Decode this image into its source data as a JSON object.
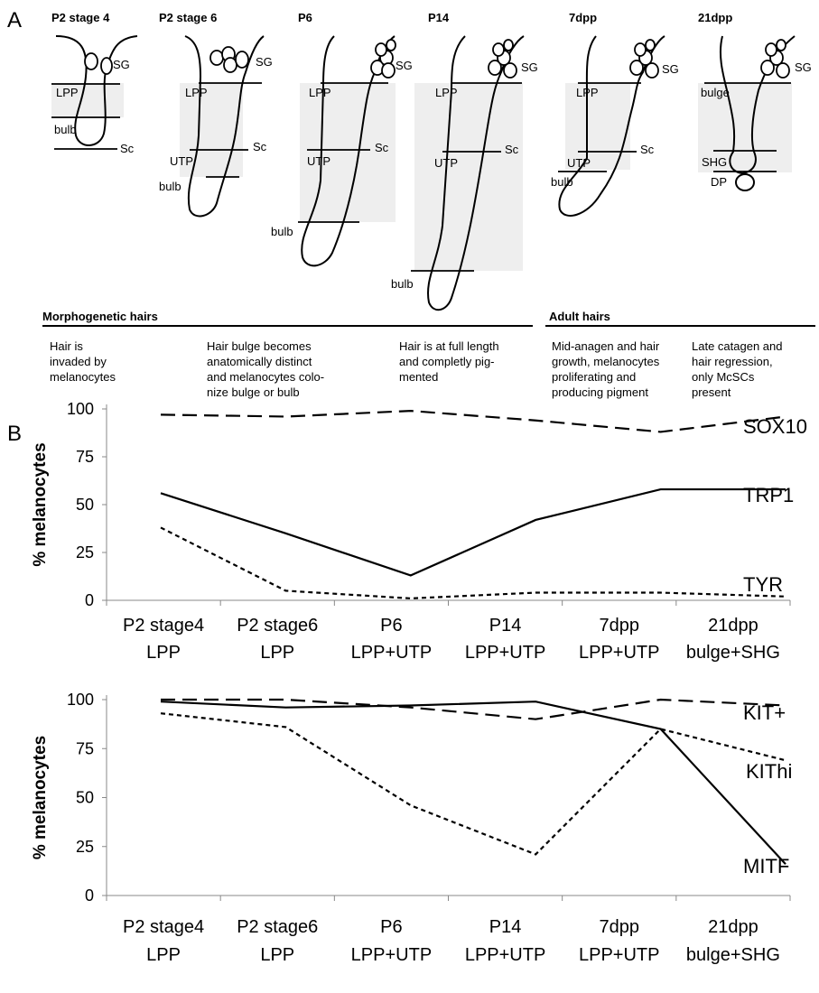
{
  "diagram": {
    "panel_label": "A",
    "hairs": [
      {
        "title": "P2 stage 4",
        "labels": [
          "SG",
          "LPP",
          "bulb",
          "Sc"
        ]
      },
      {
        "title": "P2 stage 6",
        "labels": [
          "SG",
          "LPP",
          "Sc",
          "UTP",
          "bulb"
        ]
      },
      {
        "title": "P6",
        "labels": [
          "SG",
          "LPP",
          "Sc",
          "UTP",
          "bulb"
        ]
      },
      {
        "title": "P14",
        "labels": [
          "SG",
          "LPP",
          "Sc",
          "UTP",
          "bulb"
        ]
      },
      {
        "title": "7dpp",
        "labels": [
          "SG",
          "LPP",
          "Sc",
          "UTP",
          "bulb"
        ]
      },
      {
        "title": "21dpp",
        "labels": [
          "SG",
          "bulge",
          "SHG",
          "DP"
        ]
      }
    ],
    "sections": [
      "Morphogenetic hairs",
      "Adult hairs"
    ],
    "descriptions": [
      [
        "Hair is",
        "invaded by",
        "melanocytes"
      ],
      [
        "Hair bulge becomes",
        "anatomically distinct",
        "and melanocytes colo-",
        "nize bulge or bulb"
      ],
      [
        "Hair is at full length",
        "and completly pig-",
        "mented"
      ],
      [
        "Mid-anagen and hair",
        "growth, melanocytes",
        "proliferating and",
        "producing pigment"
      ],
      [
        "Late catagen and",
        "hair regression,",
        "only McSCs",
        "present"
      ]
    ]
  },
  "panel_b_label": "B",
  "chart_data": [
    {
      "type": "line",
      "ylabel": "% melanocytes",
      "categories": [
        [
          "P2 stage4",
          "LPP"
        ],
        [
          "P2 stage6",
          "LPP"
        ],
        [
          "P6",
          "LPP+UTP"
        ],
        [
          "P14",
          "LPP+UTP"
        ],
        [
          "7dpp",
          "LPP+UTP"
        ],
        [
          "21dpp",
          "bulge+SHG"
        ]
      ],
      "ylim": [
        0,
        100
      ],
      "yticks": [
        0,
        25,
        50,
        75,
        100
      ],
      "series": [
        {
          "name": "SOX10",
          "color": "#000000",
          "line_style": "long-dash",
          "values": [
            97,
            96,
            99,
            94,
            88,
            96
          ]
        },
        {
          "name": "TRP1",
          "color": "#000000",
          "line_style": "solid",
          "values": [
            56,
            35,
            13,
            42,
            58,
            58
          ]
        },
        {
          "name": "TYR",
          "color": "#000000",
          "line_style": "short-dash",
          "values": [
            38,
            5,
            1,
            4,
            4,
            2
          ]
        }
      ]
    },
    {
      "type": "line",
      "ylabel": "% melanocytes",
      "categories": [
        [
          "P2 stage4",
          "LPP"
        ],
        [
          "P2 stage6",
          "LPP"
        ],
        [
          "P6",
          "LPP+UTP"
        ],
        [
          "P14",
          "LPP+UTP"
        ],
        [
          "7dpp",
          "LPP+UTP"
        ],
        [
          "21dpp",
          "bulge+SHG"
        ]
      ],
      "ylim": [
        0,
        100
      ],
      "yticks": [
        0,
        25,
        50,
        75,
        100
      ],
      "series": [
        {
          "name": "KIT+",
          "color": "#000000",
          "line_style": "long-dash",
          "values": [
            100,
            100,
            96,
            90,
            100,
            97
          ]
        },
        {
          "name": "KIThi",
          "color": "#000000",
          "line_style": "short-dash",
          "values": [
            93,
            86,
            46,
            21,
            85,
            69
          ]
        },
        {
          "name": "MITF",
          "color": "#000000",
          "line_style": "solid",
          "values": [
            99,
            96,
            97,
            99,
            85,
            16
          ]
        }
      ]
    }
  ]
}
